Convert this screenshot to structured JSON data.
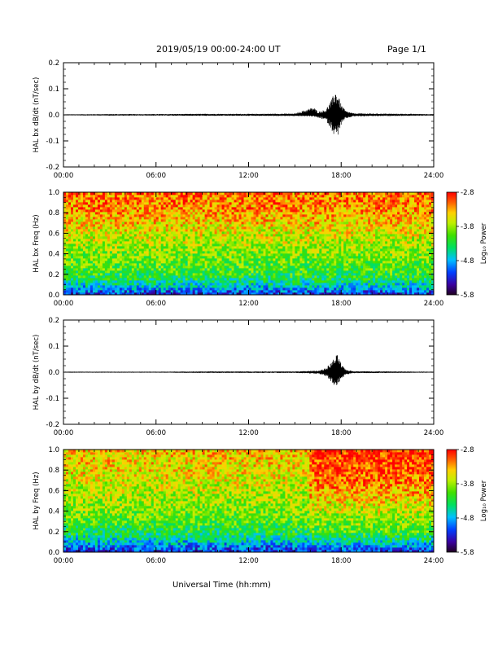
{
  "header": {
    "title": "2019/05/19  00:00-24:00 UT",
    "page": "Page 1/1"
  },
  "xaxis": {
    "label": "Universal Time (hh:mm)",
    "ticks": [
      "00:00",
      "06:00",
      "12:00",
      "18:00",
      "24:00"
    ]
  },
  "colorbar": {
    "label": "Log₁₀ Power",
    "ticks": [
      "-2.8",
      "-3.8",
      "-4.8",
      "-5.8"
    ],
    "range": [
      -5.8,
      -2.8
    ]
  },
  "chart_data": [
    {
      "type": "line",
      "ylabel": "HAL  bx  dB/dt  (nT/sec)",
      "xlim": [
        0,
        24
      ],
      "ylim": [
        -0.2,
        0.2
      ],
      "yticks": [
        "0.2",
        "0.1",
        "0.0",
        "-0.1",
        "-0.2"
      ],
      "xticks": [
        "00:00",
        "06:00",
        "12:00",
        "18:00",
        "24:00"
      ],
      "series": [
        {
          "x": [
            0,
            3,
            6,
            9,
            12,
            15,
            16.2,
            16.5,
            17.0,
            17.4,
            17.6,
            17.8,
            18.0,
            18.3,
            18.8,
            24
          ],
          "y_max": [
            0.002,
            0.003,
            0.003,
            0.004,
            0.004,
            0.005,
            0.03,
            0.012,
            0.02,
            0.06,
            0.095,
            0.08,
            0.04,
            0.015,
            0.006,
            0.003
          ],
          "y_min": [
            -0.002,
            -0.003,
            -0.003,
            -0.004,
            -0.004,
            -0.005,
            -0.006,
            -0.012,
            -0.02,
            -0.06,
            -0.085,
            -0.08,
            -0.04,
            -0.015,
            -0.006,
            -0.003
          ]
        }
      ]
    },
    {
      "type": "heatmap",
      "ylabel": "HAL  bx  Freq  (Hz)",
      "xlim": [
        0,
        24
      ],
      "ylim": [
        0.0,
        1.0
      ],
      "yticks": [
        "1.0",
        "0.8",
        "0.6",
        "0.4",
        "0.2",
        "0.0"
      ],
      "xticks": [
        "00:00",
        "06:00",
        "12:00",
        "18:00",
        "24:00"
      ],
      "zlim": [
        -5.8,
        -2.8
      ],
      "freq": [
        0.0,
        0.1,
        0.2,
        0.4,
        0.6,
        0.8,
        1.0
      ],
      "log_power_profile": [
        -5.3,
        -4.6,
        -4.2,
        -3.9,
        -3.6,
        -3.3,
        -3.1
      ]
    },
    {
      "type": "line",
      "ylabel": "HAL  by  dB/dt  (nT/sec)",
      "xlim": [
        0,
        24
      ],
      "ylim": [
        -0.2,
        0.2
      ],
      "yticks": [
        "0.2",
        "0.1",
        "0.0",
        "-0.1",
        "-0.2"
      ],
      "xticks": [
        "00:00",
        "06:00",
        "12:00",
        "18:00",
        "24:00"
      ],
      "series": [
        {
          "x": [
            0,
            3,
            6,
            9,
            12,
            15,
            16.5,
            17.0,
            17.4,
            17.6,
            17.8,
            18.0,
            18.3,
            18.8,
            24
          ],
          "y_max": [
            0.002,
            0.002,
            0.002,
            0.003,
            0.003,
            0.003,
            0.006,
            0.015,
            0.04,
            0.06,
            0.07,
            0.03,
            0.01,
            0.004,
            0.002
          ],
          "y_min": [
            -0.002,
            -0.002,
            -0.002,
            -0.003,
            -0.003,
            -0.003,
            -0.006,
            -0.015,
            -0.04,
            -0.055,
            -0.05,
            -0.03,
            -0.01,
            -0.004,
            -0.002
          ]
        }
      ]
    },
    {
      "type": "heatmap",
      "ylabel": "HAL  by  Freq  (Hz)",
      "xlim": [
        0,
        24
      ],
      "ylim": [
        0.0,
        1.0
      ],
      "yticks": [
        "1.0",
        "0.8",
        "0.6",
        "0.4",
        "0.2",
        "0.0"
      ],
      "xticks": [
        "00:00",
        "06:00",
        "12:00",
        "18:00",
        "24:00"
      ],
      "zlim": [
        -5.8,
        -2.8
      ],
      "freq": [
        0.0,
        0.1,
        0.2,
        0.4,
        0.6,
        0.8,
        1.0
      ],
      "log_power_profile": [
        -5.3,
        -4.7,
        -4.3,
        -3.9,
        -3.7,
        -3.5,
        -3.4
      ],
      "enhanced_after_hour": 16,
      "enhanced_profile": [
        -5.3,
        -4.6,
        -4.1,
        -3.7,
        -3.3,
        -3.0,
        -2.9
      ]
    }
  ]
}
